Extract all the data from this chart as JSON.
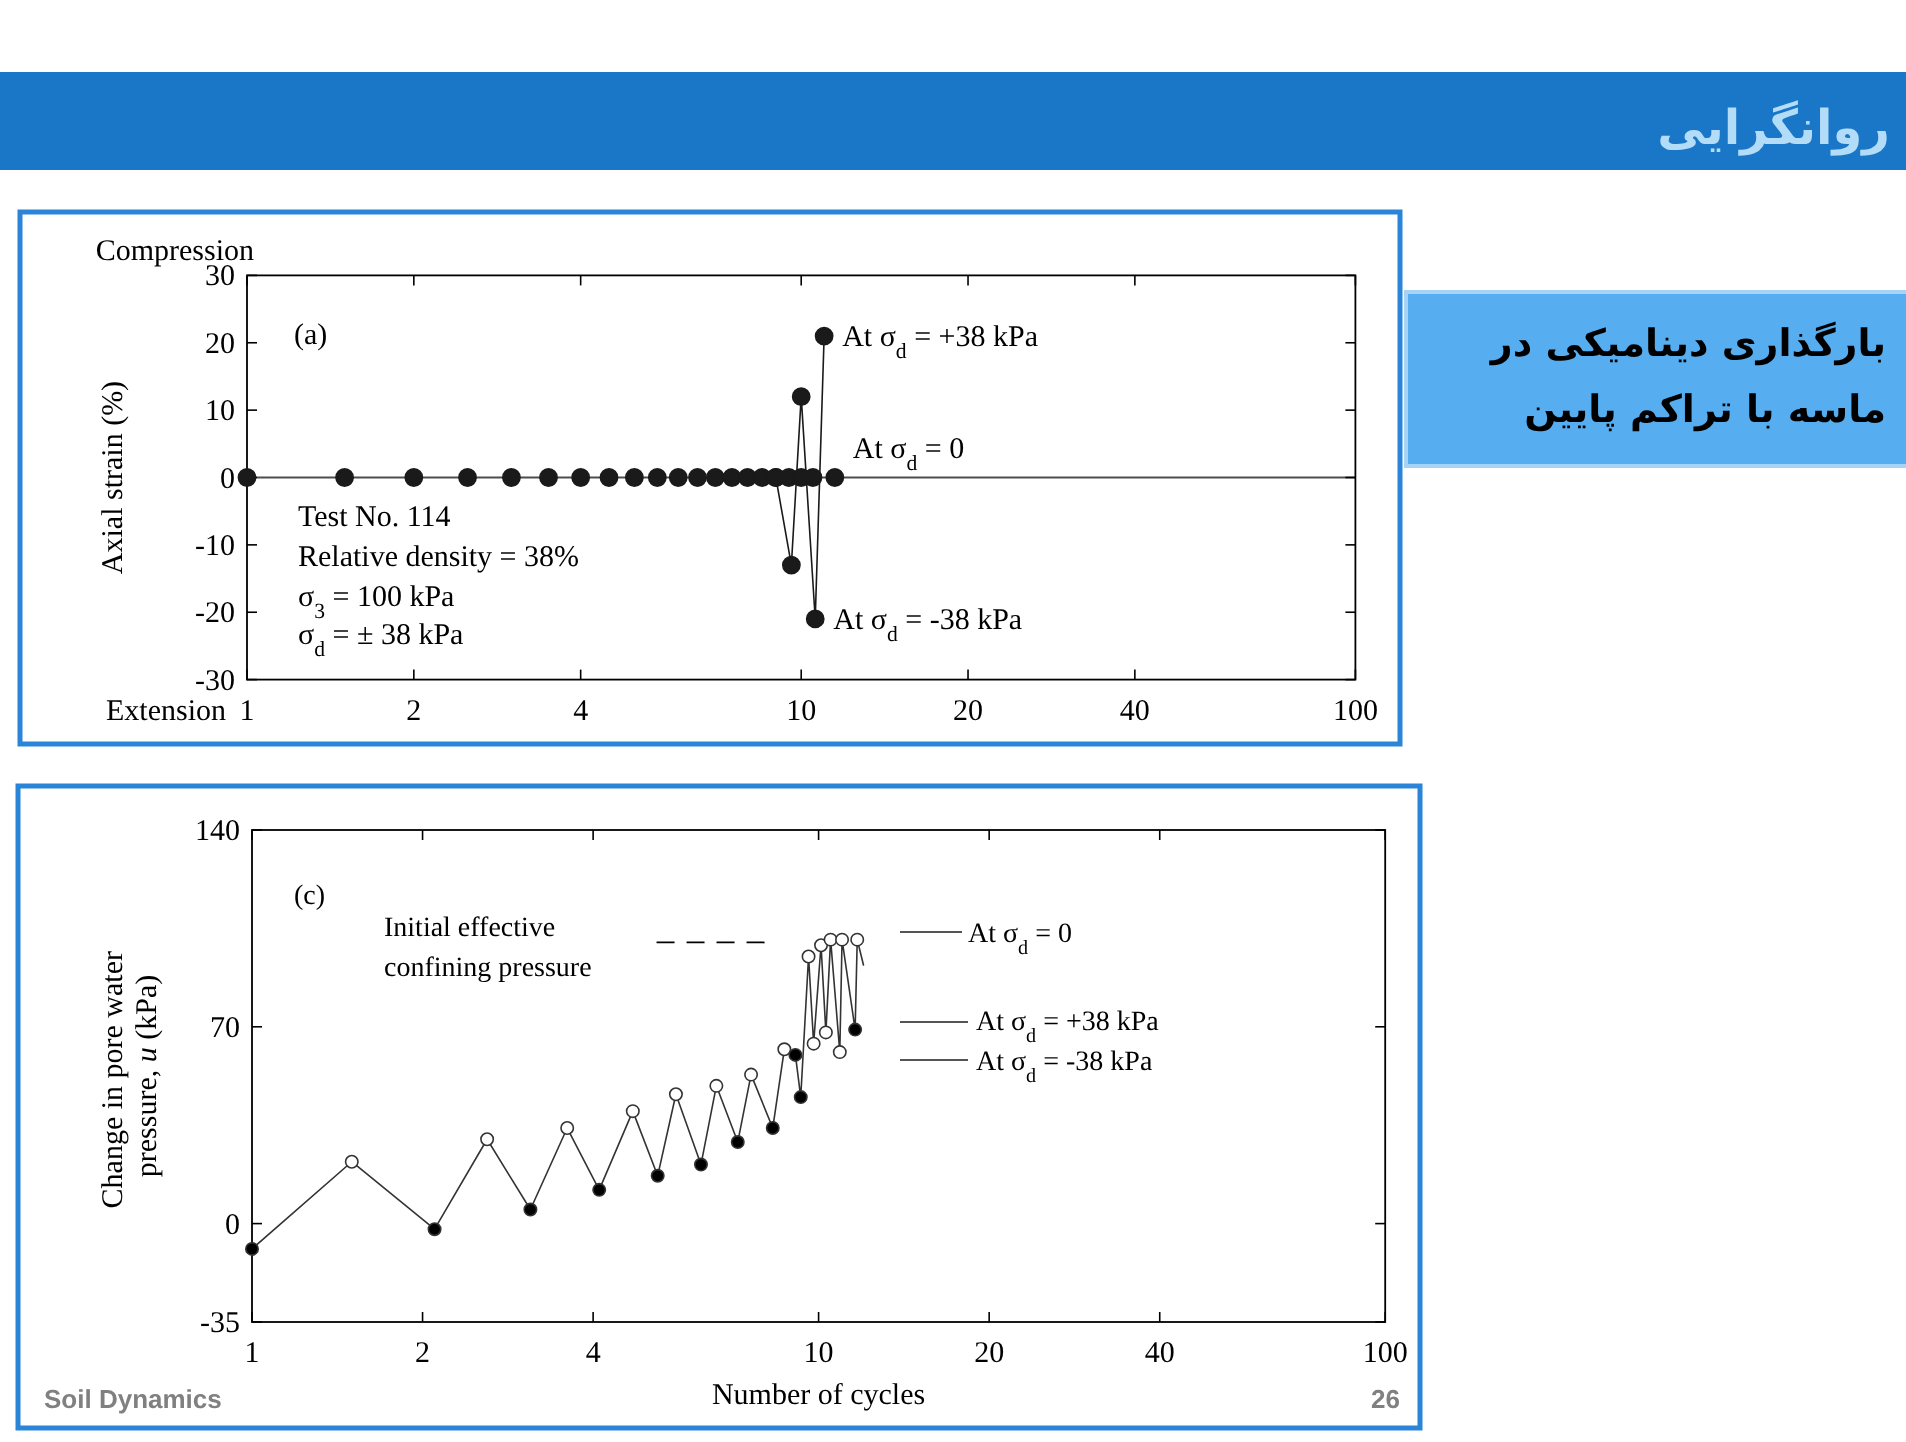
{
  "chart_data": [
    {
      "type": "other",
      "title": "روانگرایی",
      "annotations": [
        "بارگذاری دینامیکی در",
        "ماسه با تراکم پایین",
        "Soil Dynamics",
        "26"
      ]
    },
    {
      "type": "line",
      "log": "x",
      "xlim": [
        1,
        100
      ],
      "xticks": [
        1,
        2,
        4,
        10,
        20,
        40,
        100
      ],
      "ylim": [
        -30,
        30
      ],
      "yticks": [
        -30,
        -20,
        -10,
        0,
        10,
        20,
        30
      ],
      "ylabel": "Axial strain (%)",
      "marker": "circle",
      "series": [
        {
          "type": "scatter",
          "color": "#1a1a1a",
          "x": [
            1,
            1.5,
            2,
            2.5,
            3,
            3.5,
            4,
            4.5,
            5,
            5.5,
            6,
            6.5,
            7,
            7.5,
            8,
            8.5,
            9,
            9.5,
            10,
            10.5,
            11.5
          ],
          "values": [
            0,
            0,
            0,
            0,
            0,
            0,
            0,
            0,
            0,
            0,
            0,
            0,
            0,
            0,
            0,
            0,
            0,
            0,
            0,
            0,
            0
          ]
        },
        {
          "type": "line",
          "color": "#1a1a1a",
          "x": [
            9,
            9.6,
            10,
            10.6,
            11
          ],
          "values": [
            0,
            -13,
            12,
            -21,
            21
          ]
        }
      ],
      "ref_lines": [
        {
          "axis": "y",
          "value": 0,
          "color": "#4d4d4d"
        }
      ],
      "annotations": [
        "Compression",
        "(a)",
        "Test No. 114",
        "Relative density = 38%",
        "σ$_{3}$ = 100 kPa",
        "σ$_{d}$ = ± 38 kPa",
        "Extension",
        {
          "text": "At σ$_{d}$ = +38 kPa",
          "x": 11,
          "y": 21
        },
        {
          "text": "At σ$_{d}$ = 0",
          "x": 11.5,
          "y": 0
        },
        {
          "text": "At σ$_{d}$ = -38 kPa",
          "x": 10.6,
          "y": -21
        }
      ]
    },
    {
      "type": "line",
      "log": "x",
      "xlim": [
        1,
        100
      ],
      "xticks": [
        1,
        2,
        4,
        10,
        20,
        40,
        100
      ],
      "ylim": [
        -35,
        140
      ],
      "yticks": [
        -35,
        0,
        70,
        140
      ],
      "xlabel": "Number of cycles",
      "ylabel": "Change in pore water pressure, *u* (kPa)",
      "marker": "circle",
      "series": [
        {
          "color": "#333333",
          "x": [
            1,
            1.5,
            2.1,
            2.6,
            3.1,
            3.6,
            4.1,
            4.7,
            5.2,
            5.6,
            6.2,
            6.6,
            7.2,
            7.6,
            8.3,
            8.7,
            9.1,
            9.3,
            9.6,
            9.8,
            10.1,
            10.3,
            10.5,
            10.9,
            11,
            11.6,
            11.7,
            12
          ],
          "values": [
            -9,
            22,
            -2,
            30,
            5,
            34,
            12,
            40,
            17,
            46,
            21,
            49,
            29,
            53,
            34,
            62,
            60,
            45,
            95,
            64,
            99,
            68,
            101,
            61,
            101,
            69,
            101,
            92
          ],
          "colors": [
            "#000000",
            "#ffffff",
            "#000000",
            "#ffffff",
            "#000000",
            "#ffffff",
            "#000000",
            "#ffffff",
            "#000000",
            "#ffffff",
            "#000000",
            "#ffffff",
            "#000000",
            "#ffffff",
            "#000000",
            "#ffffff",
            "#000000",
            "#000000",
            "#ffffff",
            "#ffffff",
            "#ffffff",
            "#ffffff",
            "#ffffff",
            "#ffffff",
            "#ffffff",
            "#000000",
            "#ffffff",
            null
          ]
        }
      ],
      "ref_lines": [
        {
          "axis": "y",
          "value": 100,
          "label": "Initial effective confining pressure",
          "line_style": "dashed",
          "color": "#000000"
        }
      ],
      "annotations": [
        "(c)",
        "At σ$_{d}$ = 0",
        "At σ$_{d}$ = +38 kPa",
        "At σ$_{d}$ = -38 kPa"
      ]
    }
  ]
}
